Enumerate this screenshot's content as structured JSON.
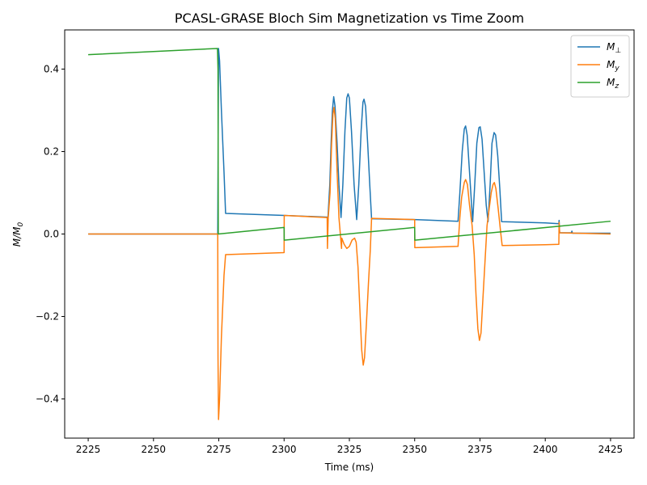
{
  "chart_data": {
    "type": "line",
    "title": "PCASL-GRASE Bloch Sim Magnetization vs Time Zoom",
    "xlabel": "Time (ms)",
    "ylabel": "M/M",
    "ylabel_sub": "0",
    "xlim": [
      2216,
      2434
    ],
    "ylim": [
      -0.495,
      0.495
    ],
    "xticks": [
      2225,
      2250,
      2275,
      2300,
      2325,
      2350,
      2375,
      2400,
      2425
    ],
    "yticks": [
      -0.4,
      -0.2,
      0.0,
      0.2,
      0.4
    ],
    "ytick_labels": [
      "−0.4",
      "−0.2",
      "0.0",
      "0.2",
      "0.4"
    ],
    "grid": false,
    "legend_position": "top-right",
    "series": [
      {
        "name": "M",
        "name_sub": "⊥",
        "color": "#1f77b4",
        "points": [
          [
            2225,
            0.0
          ],
          [
            2274.6,
            0.0
          ],
          [
            2274.9,
            0.45
          ],
          [
            2275.3,
            0.42
          ],
          [
            2276,
            0.3
          ],
          [
            2277,
            0.15
          ],
          [
            2277.6,
            0.05
          ],
          [
            2300,
            0.045
          ],
          [
            2316.6,
            0.041
          ],
          [
            2316.8,
            0.04
          ],
          [
            2317.5,
            0.12
          ],
          [
            2318,
            0.22
          ],
          [
            2318.5,
            0.3
          ],
          [
            2319,
            0.333
          ],
          [
            2319.5,
            0.31
          ],
          [
            2320.3,
            0.22
          ],
          [
            2321,
            0.12
          ],
          [
            2321.8,
            0.04
          ],
          [
            2322.5,
            0.12
          ],
          [
            2323.3,
            0.25
          ],
          [
            2324,
            0.33
          ],
          [
            2324.5,
            0.34
          ],
          [
            2325,
            0.33
          ],
          [
            2325.8,
            0.25
          ],
          [
            2326.8,
            0.12
          ],
          [
            2327.8,
            0.035
          ],
          [
            2328.6,
            0.12
          ],
          [
            2329.5,
            0.25
          ],
          [
            2330.2,
            0.32
          ],
          [
            2330.6,
            0.327
          ],
          [
            2331.2,
            0.31
          ],
          [
            2332,
            0.22
          ],
          [
            2332.8,
            0.12
          ],
          [
            2333.5,
            0.037
          ],
          [
            2350,
            0.035
          ],
          [
            2366.6,
            0.031
          ],
          [
            2367.3,
            0.1
          ],
          [
            2368.2,
            0.2
          ],
          [
            2369,
            0.255
          ],
          [
            2369.5,
            0.262
          ],
          [
            2370.1,
            0.24
          ],
          [
            2370.9,
            0.16
          ],
          [
            2371.7,
            0.08
          ],
          [
            2372.2,
            0.03
          ],
          [
            2373,
            0.12
          ],
          [
            2373.8,
            0.22
          ],
          [
            2374.6,
            0.258
          ],
          [
            2375.1,
            0.26
          ],
          [
            2375.8,
            0.23
          ],
          [
            2376.6,
            0.15
          ],
          [
            2377.4,
            0.07
          ],
          [
            2378.1,
            0.03
          ],
          [
            2378.9,
            0.12
          ],
          [
            2379.6,
            0.22
          ],
          [
            2380.4,
            0.246
          ],
          [
            2381,
            0.24
          ],
          [
            2381.8,
            0.19
          ],
          [
            2382.6,
            0.11
          ],
          [
            2383.3,
            0.03
          ],
          [
            2400,
            0.027
          ],
          [
            2405.2,
            0.025
          ],
          [
            2405.3,
            0.033
          ],
          [
            2405.5,
            0.003
          ],
          [
            2410,
            0.003
          ],
          [
            2410.2,
            0.007
          ],
          [
            2410.4,
            0.002
          ],
          [
            2425,
            0.002
          ]
        ]
      },
      {
        "name": "M",
        "name_sub": "y",
        "color": "#ff7f0e",
        "points": [
          [
            2225,
            0.0
          ],
          [
            2274.6,
            0.0
          ],
          [
            2274.7,
            -0.3
          ],
          [
            2274.9,
            -0.45
          ],
          [
            2275.3,
            -0.4
          ],
          [
            2276,
            -0.25
          ],
          [
            2277,
            -0.1
          ],
          [
            2277.6,
            -0.05
          ],
          [
            2300,
            -0.045
          ],
          [
            2300.05,
            0.045
          ],
          [
            2316.5,
            0.04
          ],
          [
            2316.6,
            -0.035
          ],
          [
            2316.9,
            0.04
          ],
          [
            2317.6,
            0.1
          ],
          [
            2318.2,
            0.22
          ],
          [
            2318.7,
            0.29
          ],
          [
            2319.1,
            0.307
          ],
          [
            2319.6,
            0.28
          ],
          [
            2320.3,
            0.15
          ],
          [
            2321,
            0.04
          ],
          [
            2321.6,
            -0.005
          ],
          [
            2322,
            -0.035
          ],
          [
            2322.1,
            -0.01
          ],
          [
            2323,
            -0.025
          ],
          [
            2324,
            -0.035
          ],
          [
            2325,
            -0.03
          ],
          [
            2326,
            -0.015
          ],
          [
            2327,
            -0.01
          ],
          [
            2327.6,
            -0.02
          ],
          [
            2328.3,
            -0.08
          ],
          [
            2329,
            -0.18
          ],
          [
            2329.7,
            -0.28
          ],
          [
            2330.3,
            -0.318
          ],
          [
            2330.8,
            -0.3
          ],
          [
            2331.5,
            -0.22
          ],
          [
            2332.3,
            -0.12
          ],
          [
            2333,
            -0.04
          ],
          [
            2333.5,
            0.038
          ],
          [
            2350,
            0.035
          ],
          [
            2350.05,
            -0.033
          ],
          [
            2366.6,
            -0.03
          ],
          [
            2367.3,
            0.04
          ],
          [
            2368,
            0.09
          ],
          [
            2369,
            0.125
          ],
          [
            2369.5,
            0.132
          ],
          [
            2370.2,
            0.12
          ],
          [
            2371,
            0.07
          ],
          [
            2372,
            0.02
          ],
          [
            2372.8,
            -0.05
          ],
          [
            2373.5,
            -0.15
          ],
          [
            2374.2,
            -0.23
          ],
          [
            2374.8,
            -0.258
          ],
          [
            2375.4,
            -0.24
          ],
          [
            2376.1,
            -0.16
          ],
          [
            2376.9,
            -0.07
          ],
          [
            2377.7,
            0.02
          ],
          [
            2378.5,
            0.06
          ],
          [
            2379.3,
            0.1
          ],
          [
            2380,
            0.12
          ],
          [
            2380.5,
            0.125
          ],
          [
            2381.1,
            0.11
          ],
          [
            2382,
            0.06
          ],
          [
            2383,
            0.0
          ],
          [
            2383.5,
            -0.028
          ],
          [
            2400,
            -0.026
          ],
          [
            2405.2,
            -0.025
          ],
          [
            2405.3,
            0.028
          ],
          [
            2405.5,
            0.003
          ],
          [
            2425,
            0.0
          ]
        ]
      },
      {
        "name": "M",
        "name_sub": "z",
        "color": "#2ca02c",
        "points": [
          [
            2225,
            0.435
          ],
          [
            2274.5,
            0.45
          ],
          [
            2274.7,
            0.4
          ],
          [
            2274.8,
            0.0
          ],
          [
            2300,
            0.016
          ],
          [
            2300.05,
            -0.015
          ],
          [
            2350,
            0.016
          ],
          [
            2350.05,
            -0.015
          ],
          [
            2425,
            0.031
          ]
        ]
      }
    ]
  }
}
